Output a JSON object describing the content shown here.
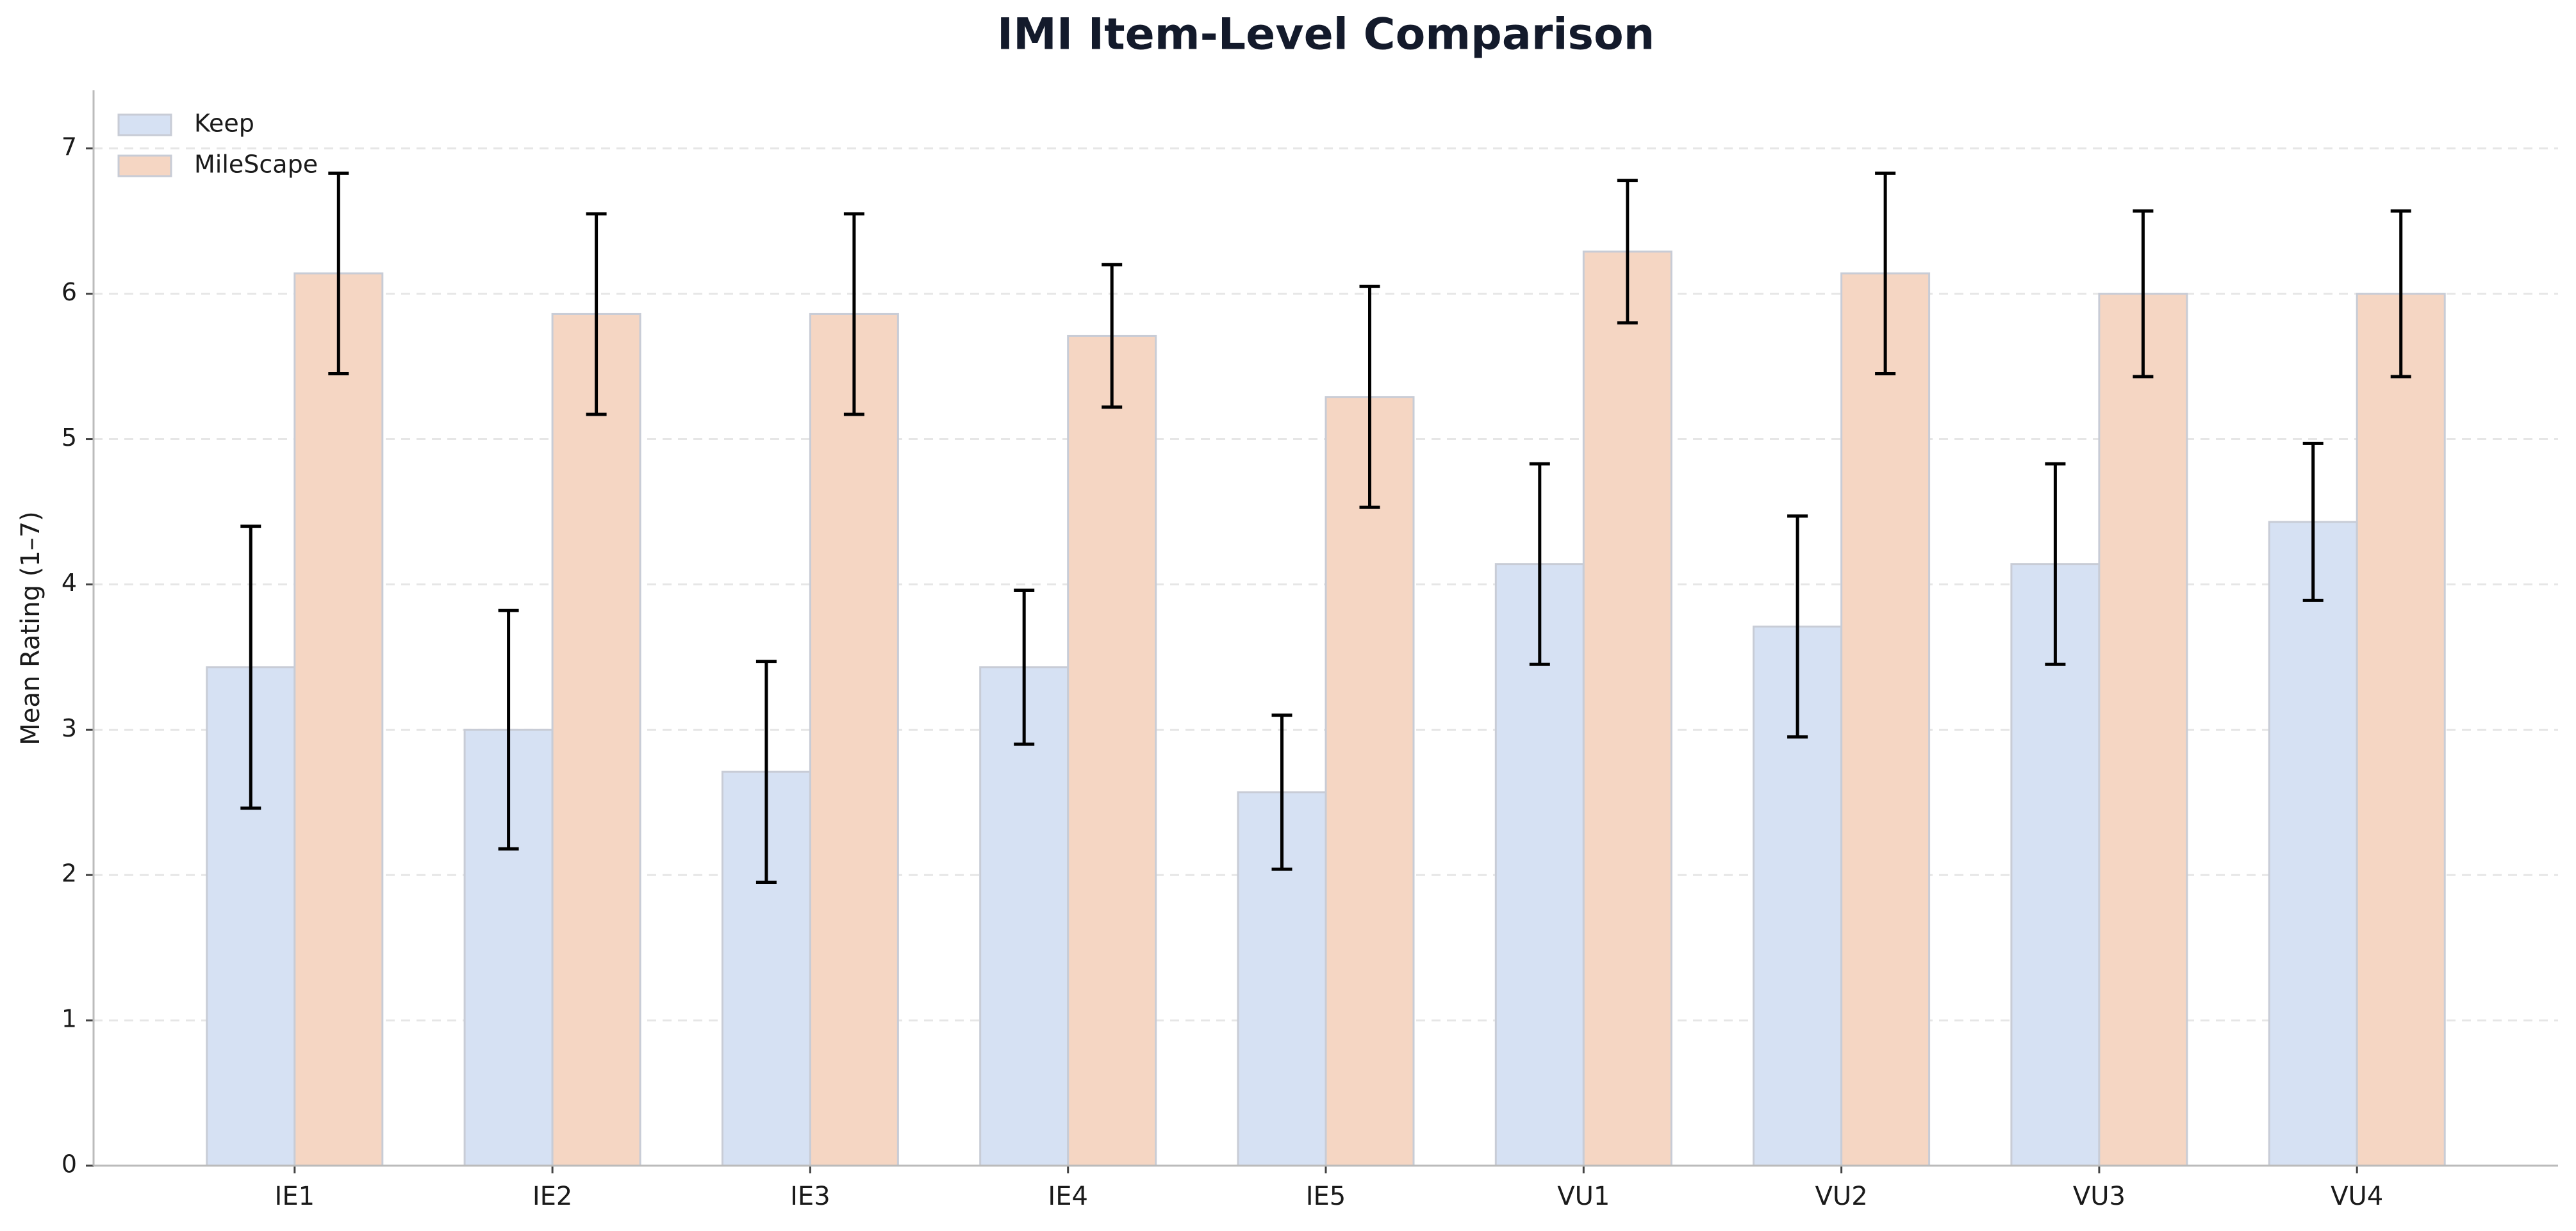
{
  "chart_data": {
    "type": "bar",
    "title": "IMI Item-Level Comparison",
    "y_label": "Mean Rating (1–7)",
    "categories": [
      "IE1",
      "IE2",
      "IE3",
      "IE4",
      "IE5",
      "VU1",
      "VU2",
      "VU3",
      "VU4"
    ],
    "series": [
      {
        "name": "Keep",
        "color": "#d6e1f3",
        "values": [
          3.43,
          3.0,
          2.71,
          3.43,
          2.57,
          4.14,
          3.71,
          4.14,
          4.43
        ],
        "errors": [
          0.97,
          0.82,
          0.76,
          0.53,
          0.53,
          0.69,
          0.76,
          0.69,
          0.54
        ]
      },
      {
        "name": "MileScape",
        "color": "#f5d6c3",
        "values": [
          6.14,
          5.86,
          5.86,
          5.71,
          5.29,
          6.29,
          6.14,
          6.0,
          6.0
        ],
        "errors": [
          0.69,
          0.69,
          0.69,
          0.49,
          0.76,
          0.49,
          0.69,
          0.57,
          0.57
        ]
      }
    ],
    "ylim": [
      0,
      7.4
    ],
    "yticks": [
      0,
      1,
      2,
      3,
      4,
      5,
      6,
      7
    ],
    "grid": true,
    "legend": "upper-left"
  }
}
